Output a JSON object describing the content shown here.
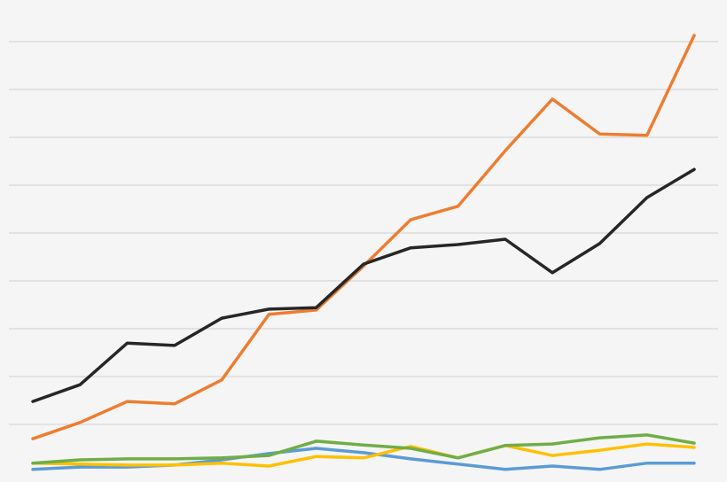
{
  "chart_data": {
    "type": "line",
    "categories": [
      null,
      null,
      null,
      null,
      null,
      null,
      null,
      null,
      null,
      null,
      null,
      null,
      null,
      null,
      null
    ],
    "series": [
      {
        "color": "#5b9bd5",
        "values": [
          0.06,
          0.11,
          0.11,
          0.15,
          0.26,
          0.39,
          0.5,
          0.41,
          0.28,
          0.17,
          0.06,
          0.13,
          0.06,
          0.19,
          0.19
        ]
      },
      {
        "color": "#ffc000",
        "values": [
          0.19,
          0.17,
          0.15,
          0.15,
          0.19,
          0.13,
          0.33,
          0.3,
          0.54,
          0.3,
          0.56,
          0.35,
          0.46,
          0.59,
          0.52
        ]
      },
      {
        "color": "#70ad47",
        "values": [
          0.19,
          0.26,
          0.28,
          0.28,
          0.3,
          0.35,
          0.65,
          0.57,
          0.5,
          0.3,
          0.56,
          0.59,
          0.72,
          0.78,
          0.61
        ]
      },
      {
        "color": "#ed7d31",
        "values": [
          0.7,
          1.04,
          1.48,
          1.43,
          1.93,
          3.3,
          3.39,
          4.31,
          5.28,
          5.56,
          6.72,
          7.8,
          7.07,
          7.04,
          9.13
        ]
      },
      {
        "color": "#262626",
        "values": [
          1.48,
          1.83,
          2.7,
          2.65,
          3.22,
          3.41,
          3.44,
          4.35,
          4.69,
          4.76,
          4.87,
          4.17,
          4.78,
          5.74,
          6.33
        ]
      }
    ],
    "ylim": [
      0,
      9.2
    ],
    "yticks": [
      1,
      2,
      3,
      4,
      5,
      6,
      7,
      8,
      9
    ],
    "grid": true
  }
}
